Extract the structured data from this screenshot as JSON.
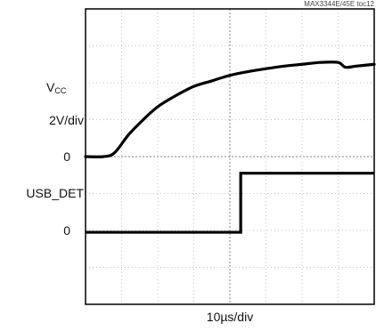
{
  "figure_id": "MAX3344E/45E toc12",
  "chart_data": {
    "type": "line",
    "title": "",
    "xlabel": "10µs/div",
    "x_divisions": 8,
    "y_divisions": 8,
    "grid": true,
    "labels": {
      "ch1_name_main": "V",
      "ch1_name_sub": "CC",
      "ch1_scale": "2V/div",
      "ch1_zero": "0",
      "ch2_name": "USB_DET",
      "ch2_zero": "0"
    },
    "series": [
      {
        "name": "VCC",
        "x": [
          0,
          0.5,
          0.8,
          1.2,
          1.6,
          2.0,
          2.5,
          3.0,
          3.5,
          4.0,
          4.5,
          5.0,
          5.5,
          6.0,
          6.5,
          7.0,
          7.2,
          7.5,
          8.0
        ],
        "y": [
          0,
          0,
          0.1,
          0.6,
          1.0,
          1.35,
          1.65,
          1.9,
          2.05,
          2.2,
          2.3,
          2.38,
          2.45,
          2.5,
          2.55,
          2.55,
          2.42,
          2.45,
          2.5
        ]
      },
      {
        "name": "USB_DET",
        "x": [
          0,
          4.3,
          4.3,
          8.0
        ],
        "y": [
          -2.05,
          -2.05,
          -0.45,
          -0.45
        ]
      }
    ]
  }
}
